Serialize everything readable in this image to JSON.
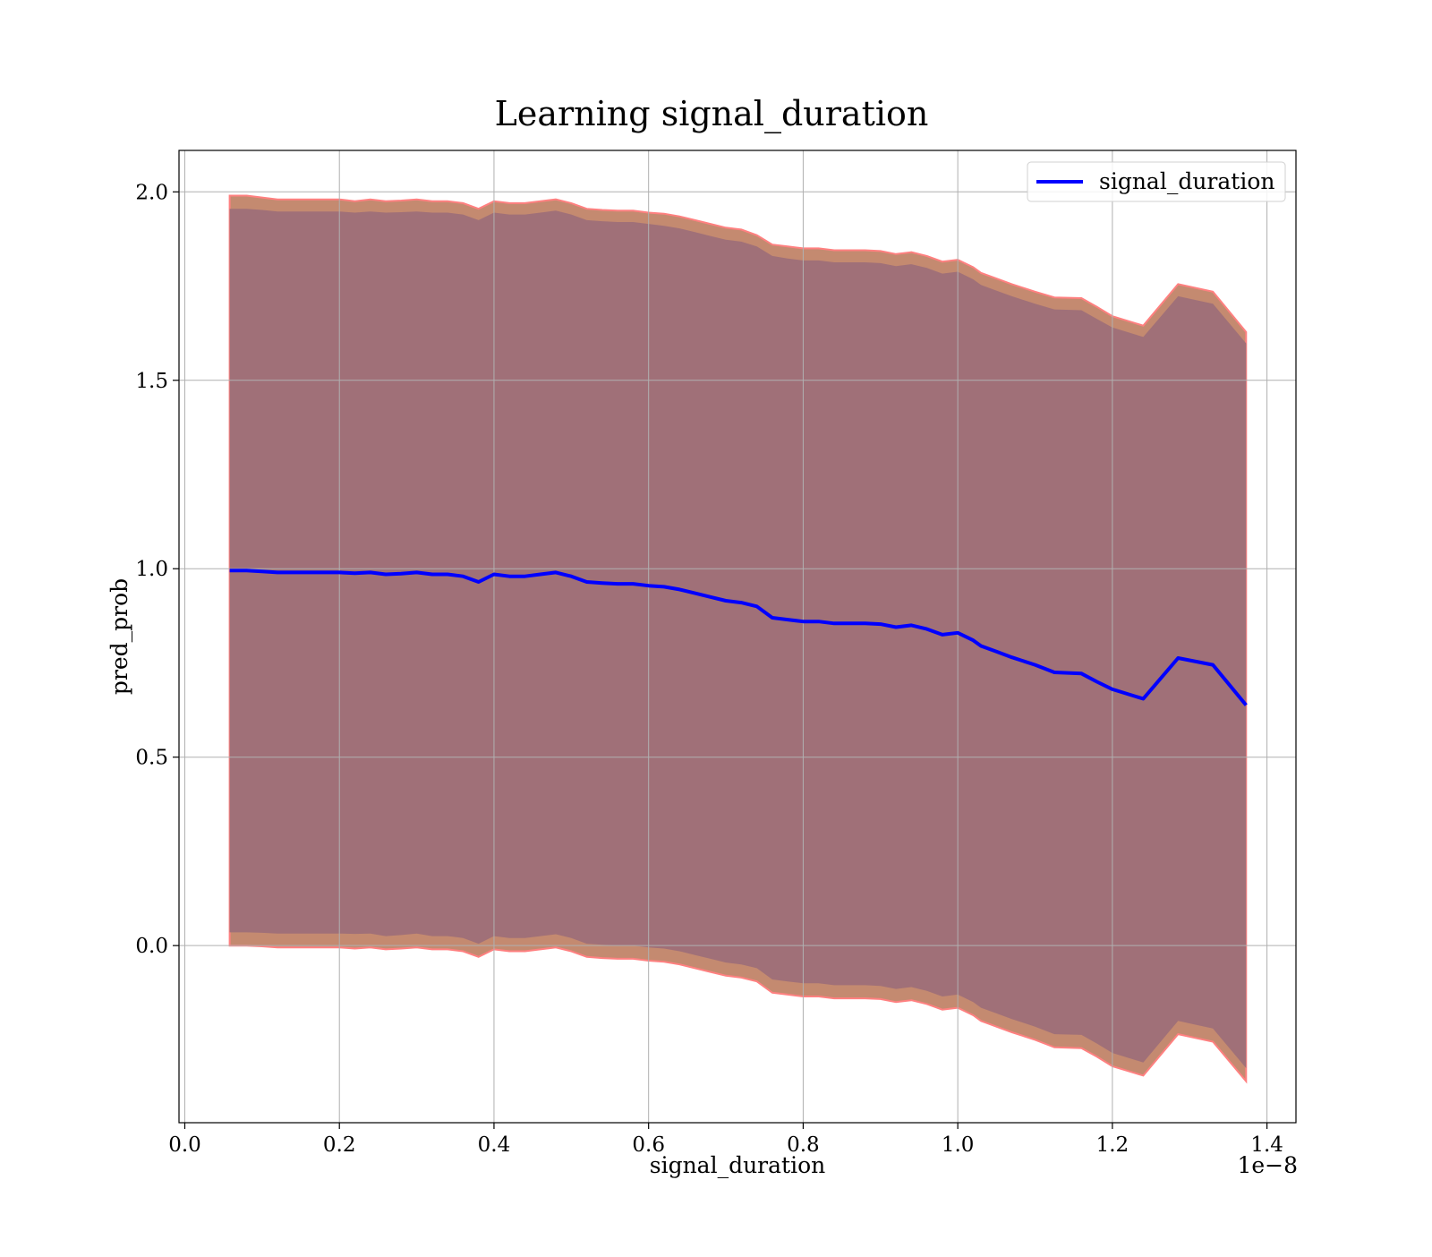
{
  "chart_data": {
    "type": "line",
    "title": "Learning signal_duration",
    "xlabel": "signal_duration",
    "ylabel": "pred_prob",
    "x_offset_text": "1e−8",
    "xlim": [
      -0.0075,
      1.4375
    ],
    "ylim": [
      -0.47,
      2.11
    ],
    "x_ticks": [
      0.0,
      0.2,
      0.4,
      0.6,
      0.8,
      1.0,
      1.2,
      1.4
    ],
    "x_tick_labels": [
      "0.0",
      "0.2",
      "0.4",
      "0.6",
      "0.8",
      "1.0",
      "1.2",
      "1.4"
    ],
    "y_ticks": [
      0.0,
      0.5,
      1.0,
      1.5,
      2.0
    ],
    "y_tick_labels": [
      "0.0",
      "0.5",
      "1.0",
      "1.5",
      "2.0"
    ],
    "grid": true,
    "legend_position": "top-right",
    "colors": {
      "line": "#0000ff",
      "band_outer": "#c48a70",
      "band_inner": "#a07078",
      "band_edge": "#ff8080",
      "grid": "#b0b0b0"
    },
    "series": [
      {
        "name": "signal_duration",
        "x": [
          0.058,
          0.08,
          0.1,
          0.12,
          0.14,
          0.16,
          0.18,
          0.2,
          0.22,
          0.24,
          0.26,
          0.28,
          0.3,
          0.32,
          0.34,
          0.36,
          0.38,
          0.4,
          0.42,
          0.44,
          0.46,
          0.48,
          0.5,
          0.52,
          0.54,
          0.56,
          0.58,
          0.6,
          0.62,
          0.64,
          0.66,
          0.68,
          0.7,
          0.72,
          0.74,
          0.76,
          0.78,
          0.8,
          0.82,
          0.84,
          0.86,
          0.88,
          0.9,
          0.92,
          0.94,
          0.96,
          0.98,
          1.0,
          1.02,
          1.03,
          1.05,
          1.07,
          1.1,
          1.125,
          1.16,
          1.18,
          1.2,
          1.24,
          1.285,
          1.33,
          1.373
        ],
        "y": [
          0.995,
          0.995,
          0.993,
          0.99,
          0.99,
          0.99,
          0.99,
          0.99,
          0.988,
          0.99,
          0.985,
          0.987,
          0.99,
          0.985,
          0.985,
          0.98,
          0.965,
          0.985,
          0.98,
          0.98,
          0.985,
          0.99,
          0.98,
          0.965,
          0.962,
          0.96,
          0.96,
          0.955,
          0.952,
          0.945,
          0.935,
          0.925,
          0.915,
          0.91,
          0.9,
          0.87,
          0.865,
          0.86,
          0.86,
          0.855,
          0.855,
          0.855,
          0.853,
          0.845,
          0.85,
          0.84,
          0.825,
          0.83,
          0.81,
          0.795,
          0.78,
          0.765,
          0.745,
          0.725,
          0.722,
          0.7,
          0.68,
          0.655,
          0.763,
          0.745,
          0.638
        ],
        "upper_outer": [
          1.99,
          1.99,
          1.985,
          1.98,
          1.98,
          1.98,
          1.98,
          1.98,
          1.975,
          1.98,
          1.975,
          1.977,
          1.98,
          1.975,
          1.975,
          1.97,
          1.955,
          1.975,
          1.97,
          1.97,
          1.975,
          1.98,
          1.97,
          1.955,
          1.952,
          1.95,
          1.95,
          1.945,
          1.942,
          1.935,
          1.925,
          1.915,
          1.905,
          1.9,
          1.885,
          1.86,
          1.855,
          1.85,
          1.85,
          1.845,
          1.845,
          1.845,
          1.843,
          1.835,
          1.84,
          1.83,
          1.815,
          1.82,
          1.8,
          1.785,
          1.77,
          1.755,
          1.735,
          1.72,
          1.718,
          1.695,
          1.67,
          1.645,
          1.755,
          1.735,
          1.628
        ],
        "upper_inner": [
          1.955,
          1.955,
          1.952,
          1.948,
          1.948,
          1.948,
          1.948,
          1.948,
          1.945,
          1.948,
          1.945,
          1.946,
          1.948,
          1.945,
          1.945,
          1.94,
          1.925,
          1.945,
          1.94,
          1.94,
          1.945,
          1.95,
          1.94,
          1.925,
          1.922,
          1.92,
          1.92,
          1.915,
          1.91,
          1.903,
          1.893,
          1.883,
          1.873,
          1.868,
          1.855,
          1.83,
          1.823,
          1.818,
          1.818,
          1.813,
          1.813,
          1.813,
          1.811,
          1.803,
          1.808,
          1.798,
          1.783,
          1.788,
          1.768,
          1.753,
          1.738,
          1.723,
          1.703,
          1.688,
          1.686,
          1.663,
          1.64,
          1.615,
          1.723,
          1.703,
          1.598
        ],
        "lower_inner": [
          0.035,
          0.035,
          0.034,
          0.032,
          0.032,
          0.032,
          0.032,
          0.032,
          0.031,
          0.032,
          0.025,
          0.028,
          0.032,
          0.025,
          0.025,
          0.02,
          0.005,
          0.025,
          0.02,
          0.02,
          0.025,
          0.03,
          0.02,
          0.005,
          0.002,
          0.0,
          0.0,
          -0.005,
          -0.008,
          -0.015,
          -0.025,
          -0.035,
          -0.045,
          -0.05,
          -0.06,
          -0.09,
          -0.095,
          -0.1,
          -0.1,
          -0.105,
          -0.105,
          -0.105,
          -0.107,
          -0.115,
          -0.11,
          -0.12,
          -0.135,
          -0.13,
          -0.15,
          -0.165,
          -0.18,
          -0.195,
          -0.215,
          -0.235,
          -0.237,
          -0.26,
          -0.285,
          -0.31,
          -0.2,
          -0.22,
          -0.325
        ],
        "lower_outer": [
          0.0,
          0.0,
          -0.002,
          -0.005,
          -0.005,
          -0.005,
          -0.005,
          -0.005,
          -0.008,
          -0.005,
          -0.01,
          -0.008,
          -0.005,
          -0.01,
          -0.01,
          -0.015,
          -0.03,
          -0.01,
          -0.015,
          -0.015,
          -0.01,
          -0.005,
          -0.015,
          -0.03,
          -0.033,
          -0.035,
          -0.035,
          -0.04,
          -0.043,
          -0.05,
          -0.06,
          -0.07,
          -0.08,
          -0.085,
          -0.095,
          -0.125,
          -0.13,
          -0.135,
          -0.135,
          -0.14,
          -0.14,
          -0.14,
          -0.142,
          -0.15,
          -0.145,
          -0.155,
          -0.17,
          -0.165,
          -0.185,
          -0.2,
          -0.215,
          -0.23,
          -0.25,
          -0.27,
          -0.272,
          -0.295,
          -0.32,
          -0.345,
          -0.235,
          -0.255,
          -0.36
        ]
      }
    ]
  }
}
